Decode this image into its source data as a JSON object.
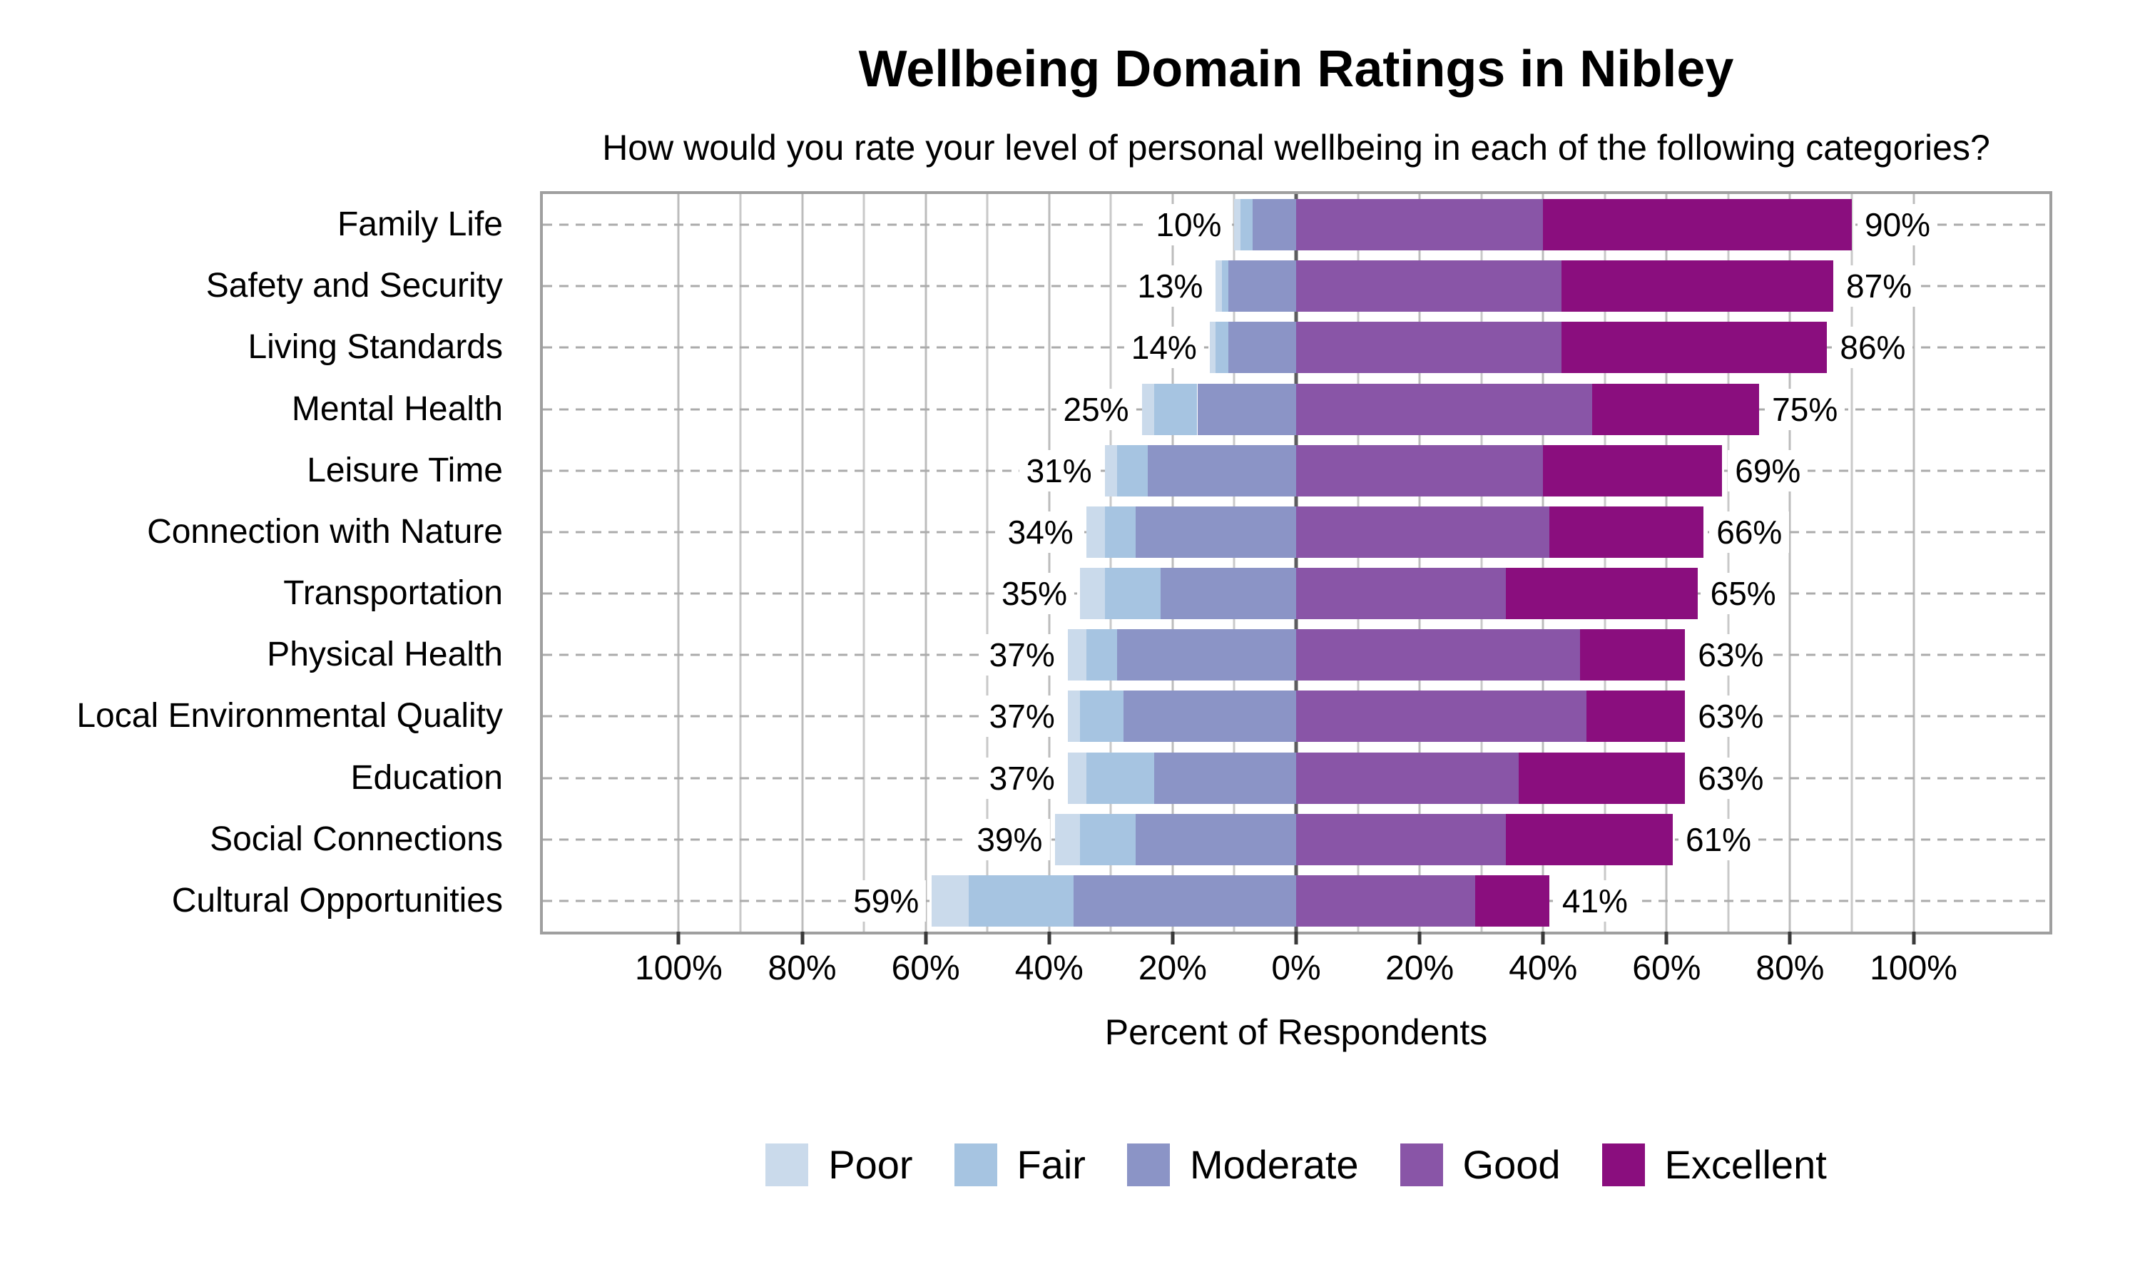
{
  "chart_data": {
    "type": "bar",
    "variant": "diverging-stacked-horizontal",
    "title": "Wellbeing Domain Ratings in Nibley",
    "subtitle": "How would you rate your level of personal wellbeing in each of the following categories?",
    "xlabel": "Percent of Respondents",
    "grid": true,
    "legend_position": "bottom",
    "x_axis": {
      "range": [
        -122,
        122
      ],
      "tick_values": [
        -100,
        -80,
        -60,
        -40,
        -20,
        0,
        20,
        40,
        60,
        80,
        100
      ],
      "tick_labels": [
        "100%",
        "80%",
        "60%",
        "40%",
        "20%",
        "0%",
        "20%",
        "40%",
        "60%",
        "80%",
        "100%"
      ],
      "gridlines_from": -100,
      "gridlines_to": 100,
      "gridline_step": 10
    },
    "categories": [
      "Family Life",
      "Safety and Security",
      "Living Standards",
      "Mental Health",
      "Leisure Time",
      "Connection with Nature",
      "Transportation",
      "Physical Health",
      "Local Environmental Quality",
      "Education",
      "Social Connections",
      "Cultural Opportunities"
    ],
    "series": [
      {
        "name": "Poor",
        "color": "#cadaeb",
        "values": [
          1,
          1,
          1,
          2,
          2,
          3,
          4,
          3,
          2,
          3,
          4,
          6
        ]
      },
      {
        "name": "Fair",
        "color": "#a6c4e1",
        "values": [
          2,
          1,
          2,
          7,
          5,
          5,
          9,
          5,
          7,
          11,
          9,
          17
        ]
      },
      {
        "name": "Moderate",
        "color": "#8b94c6",
        "values": [
          7,
          11,
          11,
          16,
          24,
          26,
          22,
          29,
          28,
          23,
          26,
          36
        ]
      },
      {
        "name": "Good",
        "color": "#8955a7",
        "values": [
          40,
          43,
          43,
          48,
          40,
          41,
          34,
          46,
          47,
          36,
          34,
          29
        ]
      },
      {
        "name": "Excellent",
        "color": "#8a0e7e",
        "values": [
          50,
          44,
          43,
          27,
          29,
          25,
          31,
          17,
          16,
          27,
          27,
          12
        ]
      }
    ],
    "negative_series": [
      "Poor",
      "Fair",
      "Moderate"
    ],
    "positive_series": [
      "Good",
      "Excellent"
    ],
    "left_total_labels": [
      "10%",
      "13%",
      "14%",
      "25%",
      "31%",
      "34%",
      "35%",
      "37%",
      "37%",
      "37%",
      "39%",
      "59%"
    ],
    "right_total_labels": [
      "90%",
      "87%",
      "86%",
      "75%",
      "69%",
      "66%",
      "65%",
      "63%",
      "63%",
      "63%",
      "61%",
      "41%"
    ],
    "style": {
      "zero_line_color": "#5d5d5f",
      "gridline_color": "#c9c9c9",
      "row_guide_color": "#ababab",
      "plot_border_color": "#9f9f9f",
      "tick_color": "#3a3a3a"
    }
  }
}
